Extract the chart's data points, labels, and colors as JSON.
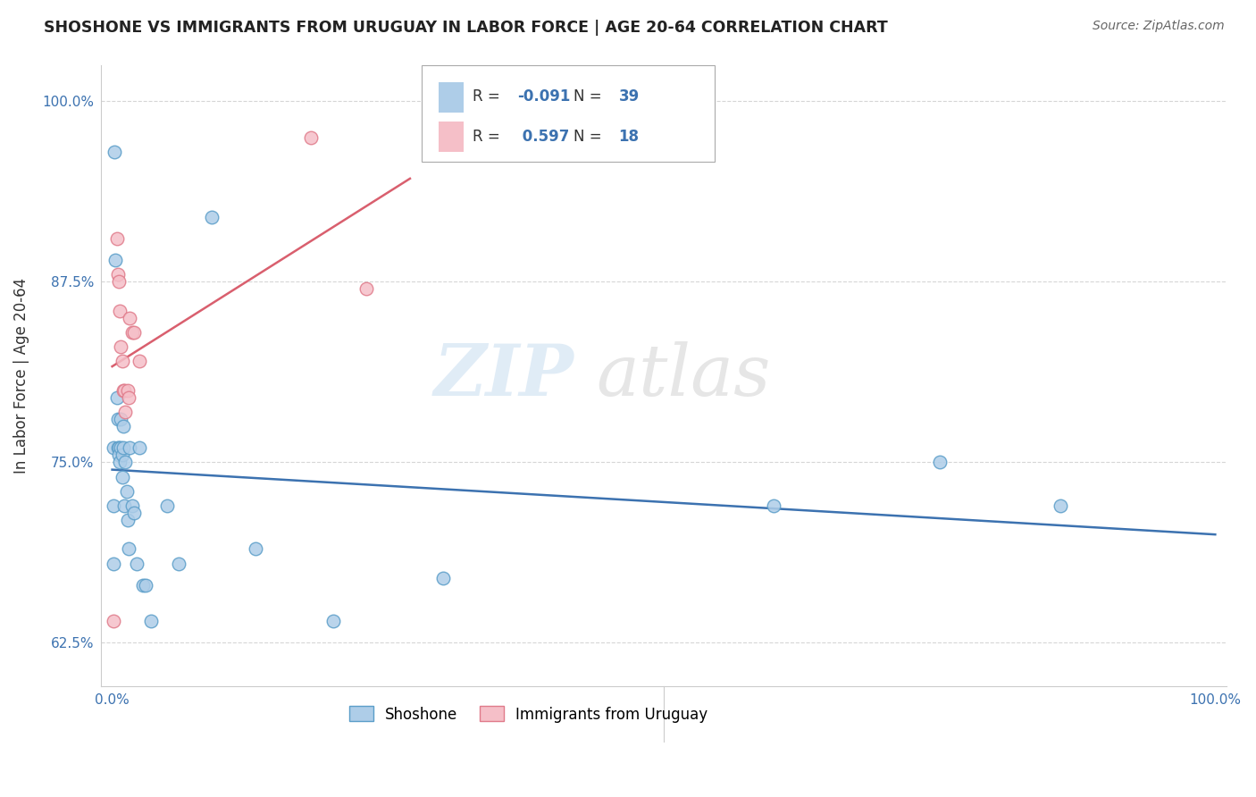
{
  "title": "SHOSHONE VS IMMIGRANTS FROM URUGUAY IN LABOR FORCE | AGE 20-64 CORRELATION CHART",
  "source": "Source: ZipAtlas.com",
  "ylabel": "In Labor Force | Age 20-64",
  "watermark_part1": "ZIP",
  "watermark_part2": "atlas",
  "shoshone_R": -0.091,
  "shoshone_N": 39,
  "uruguay_R": 0.597,
  "uruguay_N": 18,
  "xlim": [
    -0.01,
    1.01
  ],
  "ylim": [
    0.595,
    1.025
  ],
  "xticks": [
    0.0,
    0.2,
    0.4,
    0.6,
    0.8,
    1.0
  ],
  "yticks": [
    0.625,
    0.75,
    0.875,
    1.0
  ],
  "xticklabels": [
    "0.0%",
    "",
    "",
    "",
    "",
    "100.0%"
  ],
  "yticklabels": [
    "62.5%",
    "75.0%",
    "87.5%",
    "100.0%"
  ],
  "shoshone_color": "#aecde8",
  "shoshone_edge": "#5b9ec9",
  "uruguay_color": "#f5bfc8",
  "uruguay_edge": "#e07a8a",
  "shoshone_line_color": "#3c72b0",
  "uruguay_line_color": "#d95f6e",
  "background_color": "#ffffff",
  "shoshone_x": [
    0.001,
    0.001,
    0.001,
    0.002,
    0.003,
    0.004,
    0.005,
    0.005,
    0.006,
    0.006,
    0.007,
    0.008,
    0.008,
    0.009,
    0.009,
    0.01,
    0.01,
    0.011,
    0.012,
    0.013,
    0.014,
    0.015,
    0.016,
    0.018,
    0.02,
    0.022,
    0.025,
    0.028,
    0.03,
    0.035,
    0.05,
    0.06,
    0.09,
    0.13,
    0.2,
    0.3,
    0.6,
    0.75,
    0.86
  ],
  "shoshone_y": [
    0.76,
    0.72,
    0.68,
    0.965,
    0.89,
    0.795,
    0.78,
    0.76,
    0.76,
    0.755,
    0.75,
    0.78,
    0.76,
    0.755,
    0.74,
    0.775,
    0.76,
    0.72,
    0.75,
    0.73,
    0.71,
    0.69,
    0.76,
    0.72,
    0.715,
    0.68,
    0.76,
    0.665,
    0.665,
    0.64,
    0.72,
    0.68,
    0.92,
    0.69,
    0.64,
    0.67,
    0.72,
    0.75,
    0.72
  ],
  "uruguay_x": [
    0.001,
    0.004,
    0.005,
    0.006,
    0.007,
    0.008,
    0.009,
    0.01,
    0.011,
    0.012,
    0.014,
    0.015,
    0.016,
    0.018,
    0.02,
    0.025,
    0.18,
    0.23
  ],
  "uruguay_y": [
    0.64,
    0.905,
    0.88,
    0.875,
    0.855,
    0.83,
    0.82,
    0.8,
    0.8,
    0.785,
    0.8,
    0.795,
    0.85,
    0.84,
    0.84,
    0.82,
    0.975,
    0.87
  ]
}
